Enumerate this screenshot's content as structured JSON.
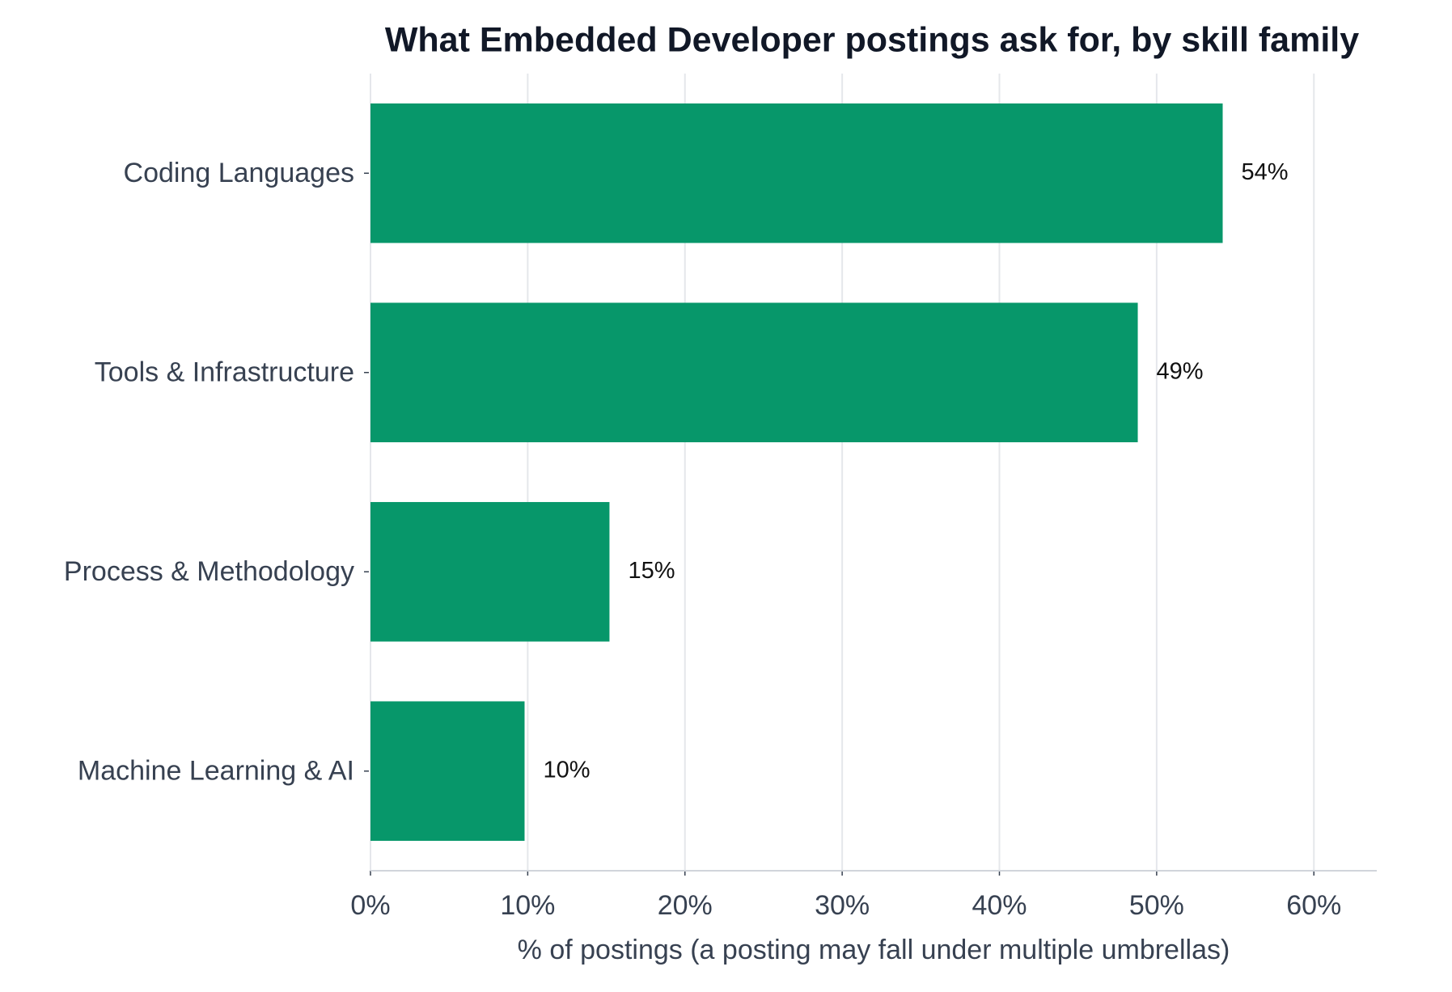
{
  "chart_data": {
    "type": "bar",
    "orientation": "horizontal",
    "title": "What Embedded Developer postings ask for, by skill family",
    "xlabel": "% of postings (a posting may fall under multiple umbrellas)",
    "categories": [
      "Coding Languages",
      "Tools & Infrastructure",
      "Process & Methodology",
      "Machine Learning & AI"
    ],
    "values": [
      54.2,
      48.8,
      15.2,
      9.8
    ],
    "value_labels": [
      "54%",
      "49%",
      "15%",
      "10%"
    ],
    "color": "#07976a",
    "xlim": [
      0,
      64
    ],
    "xticks": [
      {
        "value": 0,
        "label": "0%"
      },
      {
        "value": 10,
        "label": "10%"
      },
      {
        "value": 20,
        "label": "20%"
      },
      {
        "value": 30,
        "label": "30%"
      },
      {
        "value": 40,
        "label": "40%"
      },
      {
        "value": 50,
        "label": "50%"
      },
      {
        "value": 60,
        "label": "60%"
      }
    ],
    "grid": true
  }
}
